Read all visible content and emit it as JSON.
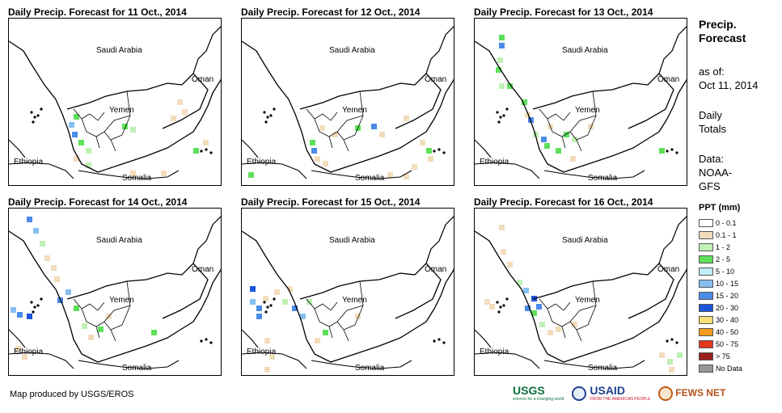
{
  "panels": [
    {
      "title": "Daily Precip. Forecast for 11 Oct., 2014"
    },
    {
      "title": "Daily Precip. Forecast for 12 Oct., 2014"
    },
    {
      "title": "Daily Precip. Forecast for 13 Oct., 2014"
    },
    {
      "title": "Daily Precip. Forecast for 14 Oct., 2014"
    },
    {
      "title": "Daily Precip. Forecast for 15 Oct., 2014"
    },
    {
      "title": "Daily Precip. Forecast for 16 Oct., 2014"
    }
  ],
  "map_labels": {
    "saudi": "Saudi Arabia",
    "oman": "Oman",
    "yemen": "Yemen",
    "ethiopia": "Ethiopia",
    "somalia": "Somalia"
  },
  "sidebar": {
    "heading_line1": "Precip.",
    "heading_line2": "Forecast",
    "asof_label": "as of:",
    "asof_date": "Oct 11, 2014",
    "daily_line1": "Daily",
    "daily_line2": "Totals",
    "data_label": "Data:",
    "data_line1": "NOAA-",
    "data_line2": "GFS"
  },
  "legend": {
    "title": "PPT (mm)",
    "items": [
      {
        "label": "0 - 0.1",
        "color": "#ffffff"
      },
      {
        "label": "0.1 - 1",
        "color": "#f2dcbc"
      },
      {
        "label": "1 - 2",
        "color": "#bff0b4"
      },
      {
        "label": "2 - 5",
        "color": "#5ee05a"
      },
      {
        "label": "5 - 10",
        "color": "#bfeef5"
      },
      {
        "label": "10 - 15",
        "color": "#86bfef"
      },
      {
        "label": "15 - 20",
        "color": "#4a8be8"
      },
      {
        "label": "20 - 30",
        "color": "#1c55d9"
      },
      {
        "label": "30 - 40",
        "color": "#f5e07a"
      },
      {
        "label": "40 - 50",
        "color": "#f59a1c"
      },
      {
        "label": "50 - 75",
        "color": "#e4361b"
      },
      {
        "label": "> 75",
        "color": "#9c1f1f"
      },
      {
        "label": "No Data",
        "color": "#969696"
      }
    ]
  },
  "credit": "Map produced by USGS/EROS",
  "logos": {
    "usgs": "USGS",
    "usgs_sub": "science for a changing world",
    "usaid": "USAID",
    "usaid_sub": "FROM THE AMERICAN PEOPLE",
    "fews": "FEWS NET"
  }
}
